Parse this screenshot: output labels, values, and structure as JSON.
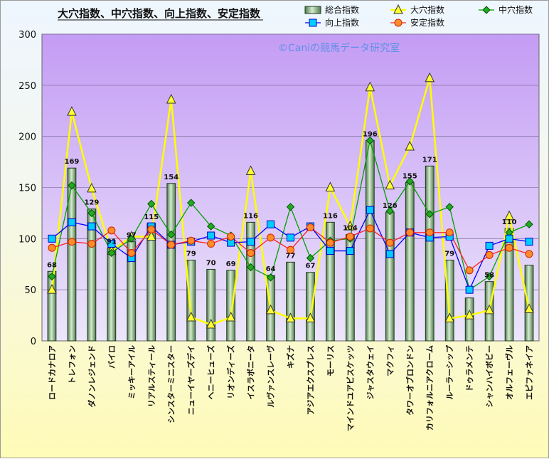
{
  "chart_data": {
    "type": "bar+line",
    "title": "大穴指数、中穴指数、向上指数、安定指数",
    "watermark": "©Caniの競馬データ研究室",
    "ylim": [
      0,
      300
    ],
    "yticks": [
      0,
      50,
      100,
      150,
      200,
      250,
      300
    ],
    "grid": true,
    "legend_position": "top-right",
    "categories": [
      "ロードカナロア",
      "トレフォン",
      "ダノンレジェンド",
      "バイロ",
      "ミッキーアイル",
      "リアルスティール",
      "シンスターミニスター",
      "ニューイヤーズデイ",
      "ヘニーヒューズ",
      "リオンディーズ",
      "イスラボニータ",
      "ルヴァンスレーヴ",
      "キズナ",
      "アジアエクスプレス",
      "モーリス",
      "マインドユアビスケッツ",
      "ジャスタウェイ",
      "マクフィ",
      "タワーオブロンドン",
      "カリフォルニアクローム",
      "ルーラーシップ",
      "ドゥラメンテ",
      "シャンハイボビー",
      "オルフェーヴル",
      "エピファネイア"
    ],
    "series": [
      {
        "name": "総合指数",
        "type": "bar",
        "color": "#b8d4a8",
        "values": [
          68,
          169,
          129,
          91,
          97,
          115,
          154,
          79,
          70,
          69,
          116,
          64,
          77,
          67,
          116,
          104,
          196,
          126,
          155,
          171,
          79,
          42,
          58,
          110,
          74
        ],
        "labels": [
          "68",
          "169",
          "129",
          "91",
          "97",
          "115",
          "154",
          "79",
          "70",
          "69",
          "116",
          "64",
          "77",
          "67",
          "116",
          "104",
          "196",
          "126",
          "155",
          "171",
          "79",
          "",
          "58",
          "110",
          ""
        ]
      },
      {
        "name": "大穴指数",
        "type": "line",
        "color": "#ffff00",
        "values": [
          50,
          224,
          149,
          88,
          102,
          102,
          236,
          23,
          16,
          23,
          166,
          30,
          22,
          22,
          150,
          112,
          248,
          152,
          190,
          257,
          22,
          25,
          30,
          122,
          31
        ]
      },
      {
        "name": "中穴指数",
        "type": "line",
        "color": "#00a000",
        "values": [
          63,
          152,
          125,
          86,
          100,
          134,
          104,
          135,
          112,
          103,
          72,
          62,
          131,
          81,
          98,
          100,
          196,
          127,
          156,
          124,
          131,
          50,
          63,
          106,
          114
        ]
      },
      {
        "name": "向上指数",
        "type": "line",
        "color": "#0000ff",
        "values": [
          100,
          116,
          112,
          95,
          81,
          112,
          94,
          97,
          103,
          96,
          97,
          114,
          101,
          112,
          88,
          88,
          128,
          85,
          106,
          101,
          102,
          50,
          93,
          100,
          97
        ]
      },
      {
        "name": "安定指数",
        "type": "line",
        "color": "#ff2020",
        "values": [
          91,
          97,
          95,
          108,
          86,
          109,
          94,
          98,
          95,
          102,
          86,
          101,
          89,
          111,
          96,
          102,
          110,
          96,
          106,
          106,
          106,
          69,
          84,
          91,
          85
        ]
      }
    ]
  }
}
